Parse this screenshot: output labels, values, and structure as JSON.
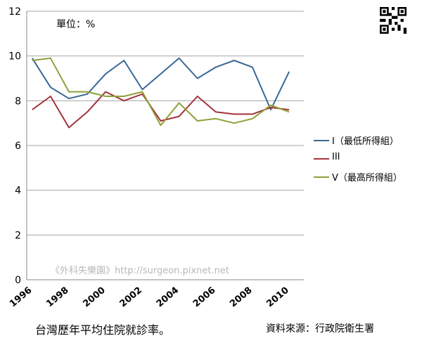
{
  "chart_data": {
    "type": "line",
    "x": [
      1996,
      1997,
      1998,
      1999,
      2000,
      2001,
      2002,
      2003,
      2004,
      2005,
      2006,
      2007,
      2008,
      2009,
      2010
    ],
    "series": [
      {
        "name": "I（最低所得組）",
        "color": "#3a6896",
        "values": [
          9.9,
          8.6,
          8.1,
          8.3,
          9.2,
          9.8,
          8.5,
          9.2,
          9.9,
          9.0,
          9.5,
          9.8,
          9.5,
          7.6,
          9.3
        ]
      },
      {
        "name": "III",
        "color": "#a3343a",
        "values": [
          7.6,
          8.2,
          6.8,
          7.5,
          8.4,
          8.0,
          8.3,
          7.1,
          7.3,
          8.2,
          7.5,
          7.4,
          7.4,
          7.7,
          7.6
        ]
      },
      {
        "name": "V（最高所得組）",
        "color": "#8ea13a",
        "values": [
          9.8,
          9.9,
          8.4,
          8.4,
          8.2,
          8.2,
          8.4,
          6.9,
          7.9,
          7.1,
          7.2,
          7.0,
          7.2,
          7.8,
          7.5
        ]
      }
    ],
    "xticks": [
      "1996",
      "1998",
      "2000",
      "2002",
      "2004",
      "2006",
      "2008",
      "2010"
    ],
    "yticks": [
      "0",
      "2",
      "4",
      "6",
      "8",
      "10",
      "12"
    ],
    "ylim": [
      0,
      12
    ],
    "grid": true,
    "legend_position": "right",
    "unit_label": "單位：%",
    "watermark": "《外科失樂園》http://surgeon.pixnet.net",
    "caption": "台灣歷年平均住院就診率。",
    "source": "資料來源：行政院衛生署"
  }
}
